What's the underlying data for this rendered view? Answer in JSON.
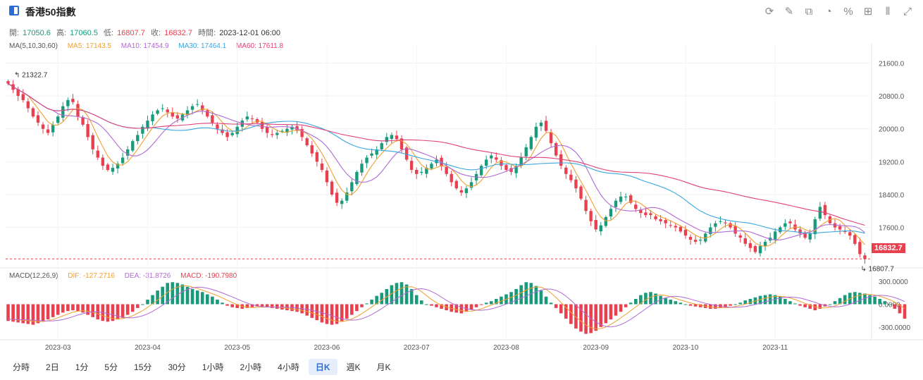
{
  "header": {
    "title": "香港50指數"
  },
  "toolbar": {
    "icons": [
      "refresh-icon",
      "draw-icon",
      "compare-icon",
      "pie-icon",
      "percent-icon",
      "grid-icon",
      "split-icon",
      "expand-icon"
    ]
  },
  "ohlc": {
    "open_label": "開:",
    "open": "17050.6",
    "high_label": "高:",
    "high": "17060.5",
    "low_label": "低:",
    "low": "16807.7",
    "close_label": "收:",
    "close": "16832.7",
    "time_label": "時間:",
    "time": "2023-12-01 06:00"
  },
  "ma_legend": {
    "label": "MA(5,10,30,60)",
    "ma5": "MA5: 17143.5",
    "ma10": "MA10: 17454.9",
    "ma30": "MA30: 17464.1",
    "ma60": "MA60: 17611.8"
  },
  "macd_legend": {
    "label": "MACD(12,26,9)",
    "dif": "DIF: -127.2716",
    "dea": "DEA: -31.8726",
    "macd": "MACD: -190.7980"
  },
  "price_tag": "16832.7",
  "periods": [
    "分時",
    "2日",
    "1分",
    "5分",
    "15分",
    "30分",
    "1小時",
    "2小時",
    "4小時",
    "日K",
    "週K",
    "月K"
  ],
  "active_period": "日K",
  "colors": {
    "up": "#1a9a7c",
    "down": "#e8404f",
    "ma5": "#f0a030",
    "ma10": "#b06ad4",
    "ma30": "#3aa6e0",
    "ma60": "#e0407a",
    "dif": "#f0a030",
    "dea": "#b06ad4"
  },
  "chart_data": {
    "type": "candlestick",
    "y_axis_ticks": [
      "21600.0",
      "20800.0",
      "20000.0",
      "19200.0",
      "18400.0",
      "17600.0"
    ],
    "x_axis_ticks": [
      "2023-03",
      "2023-04",
      "2023-05",
      "2023-06",
      "2023-07",
      "2023-08",
      "2023-09",
      "2023-10",
      "2023-11"
    ],
    "macd_axis_ticks": [
      "300.0000",
      "0.0000",
      "-300.0000"
    ],
    "ylim": [
      16700,
      21900
    ],
    "macd_ylim": [
      -450,
      450
    ],
    "annotations": {
      "max": "21322.7",
      "min": "16807.7"
    },
    "last_price": 16832.7,
    "approx_closes": [
      21100,
      20950,
      20800,
      20700,
      20500,
      20300,
      20150,
      20000,
      19900,
      20100,
      20300,
      20550,
      20700,
      20650,
      20300,
      20100,
      19800,
      19500,
      19300,
      19100,
      19000,
      19050,
      19150,
      19300,
      19500,
      19700,
      19850,
      20050,
      20200,
      20350,
      20450,
      20500,
      20400,
      20300,
      20250,
      20350,
      20450,
      20550,
      20600,
      20450,
      20300,
      20150,
      20000,
      19900,
      19800,
      19900,
      20050,
      20200,
      20300,
      20250,
      20150,
      20000,
      19900,
      19850,
      19900,
      19950,
      20000,
      20050,
      19950,
      19800,
      19600,
      19400,
      19200,
      19000,
      18700,
      18400,
      18200,
      18250,
      18450,
      18700,
      18950,
      19150,
      19300,
      19400,
      19500,
      19650,
      19800,
      19850,
      19750,
      19500,
      19250,
      19000,
      18900,
      18950,
      19050,
      19150,
      19250,
      19100,
      18900,
      18700,
      18550,
      18450,
      18550,
      18700,
      18900,
      19100,
      19250,
      19350,
      19250,
      19100,
      19000,
      18950,
      19100,
      19300,
      19550,
      19800,
      20050,
      20150,
      19950,
      19650,
      19350,
      19100,
      18900,
      18750,
      18550,
      18300,
      18000,
      17750,
      17550,
      17650,
      17850,
      18050,
      18250,
      18350,
      18350,
      18200,
      18050,
      17950,
      17900,
      17900,
      17800,
      17750,
      17700,
      17650,
      17600,
      17500,
      17400,
      17300,
      17250,
      17300,
      17450,
      17600,
      17700,
      17750,
      17700,
      17600,
      17450,
      17350,
      17200,
      17100,
      17000,
      17150,
      17250,
      17350,
      17500,
      17600,
      17700,
      17700,
      17550,
      17450,
      17350,
      17450,
      17800,
      18100,
      17900,
      17700,
      17600,
      17550,
      17500,
      17400,
      17200,
      16950,
      16832.7
    ],
    "approx_macd": [
      -220,
      -230,
      -240,
      -250,
      -260,
      -270,
      -250,
      -230,
      -200,
      -170,
      -140,
      -110,
      -90,
      -80,
      -90,
      -110,
      -140,
      -170,
      -200,
      -220,
      -230,
      -220,
      -200,
      -180,
      -140,
      -100,
      -50,
      0,
      60,
      120,
      180,
      230,
      280,
      290,
      280,
      260,
      230,
      200,
      180,
      160,
      130,
      100,
      60,
      20,
      -20,
      -40,
      -50,
      -60,
      -50,
      -40,
      -30,
      -30,
      -40,
      -50,
      -60,
      -70,
      -80,
      -90,
      -100,
      -120,
      -150,
      -180,
      -210,
      -240,
      -260,
      -270,
      -260,
      -230,
      -190,
      -140,
      -90,
      -40,
      10,
      60,
      110,
      150,
      200,
      250,
      280,
      290,
      260,
      200,
      120,
      50,
      0,
      -20,
      -40,
      -60,
      -80,
      -100,
      -110,
      -120,
      -100,
      -70,
      -40,
      -10,
      20,
      40,
      70,
      100,
      130,
      160,
      200,
      250,
      290,
      280,
      240,
      180,
      100,
      20,
      -50,
      -120,
      -190,
      -260,
      -320,
      -360,
      -390,
      -380,
      -350,
      -300,
      -250,
      -200,
      -150,
      -100,
      -40,
      20,
      70,
      120,
      150,
      160,
      140,
      110,
      80,
      60,
      40,
      20,
      0,
      -20,
      -30,
      -40,
      -50,
      -60,
      -60,
      -50,
      -40,
      -20,
      0,
      20,
      50,
      70,
      90,
      110,
      120,
      130,
      120,
      100,
      70,
      40,
      10,
      -20,
      -40,
      -60,
      -80,
      -60,
      -30,
      0,
      40,
      80,
      120,
      150,
      160,
      150,
      140,
      120,
      100,
      70,
      40,
      0,
      -60,
      -120,
      -190
    ]
  }
}
